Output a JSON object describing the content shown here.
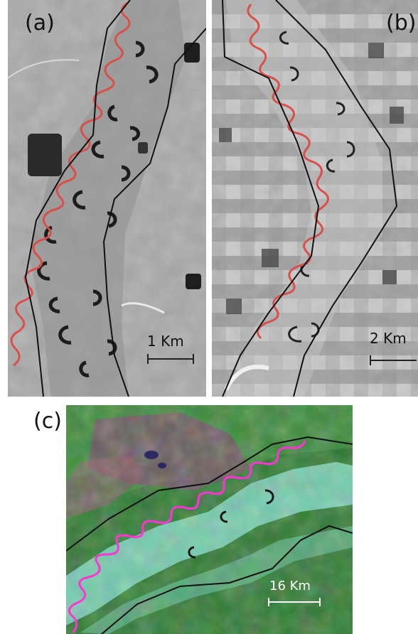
{
  "figure": {
    "panels": [
      {
        "label": "(a)",
        "scale_label": "1 Km",
        "imagery": "grayscale aerial photograph of a meandering river with oxbow lakes"
      },
      {
        "label": "(b)",
        "scale_label": "2 Km",
        "imagery": "grayscale aerial photograph of a meandering river through agricultural fields"
      },
      {
        "label": "(c)",
        "scale_label": "16 Km",
        "imagery": "false-color satellite image of a meandering river in forested floodplain"
      }
    ]
  },
  "colors": {
    "river_trace_ab": "#d9504a",
    "river_trace_c": "#ff33d6",
    "boundary": "#111111",
    "forest_green": "#2f7a32",
    "floodplain_cyan": "#7fd9c2"
  }
}
